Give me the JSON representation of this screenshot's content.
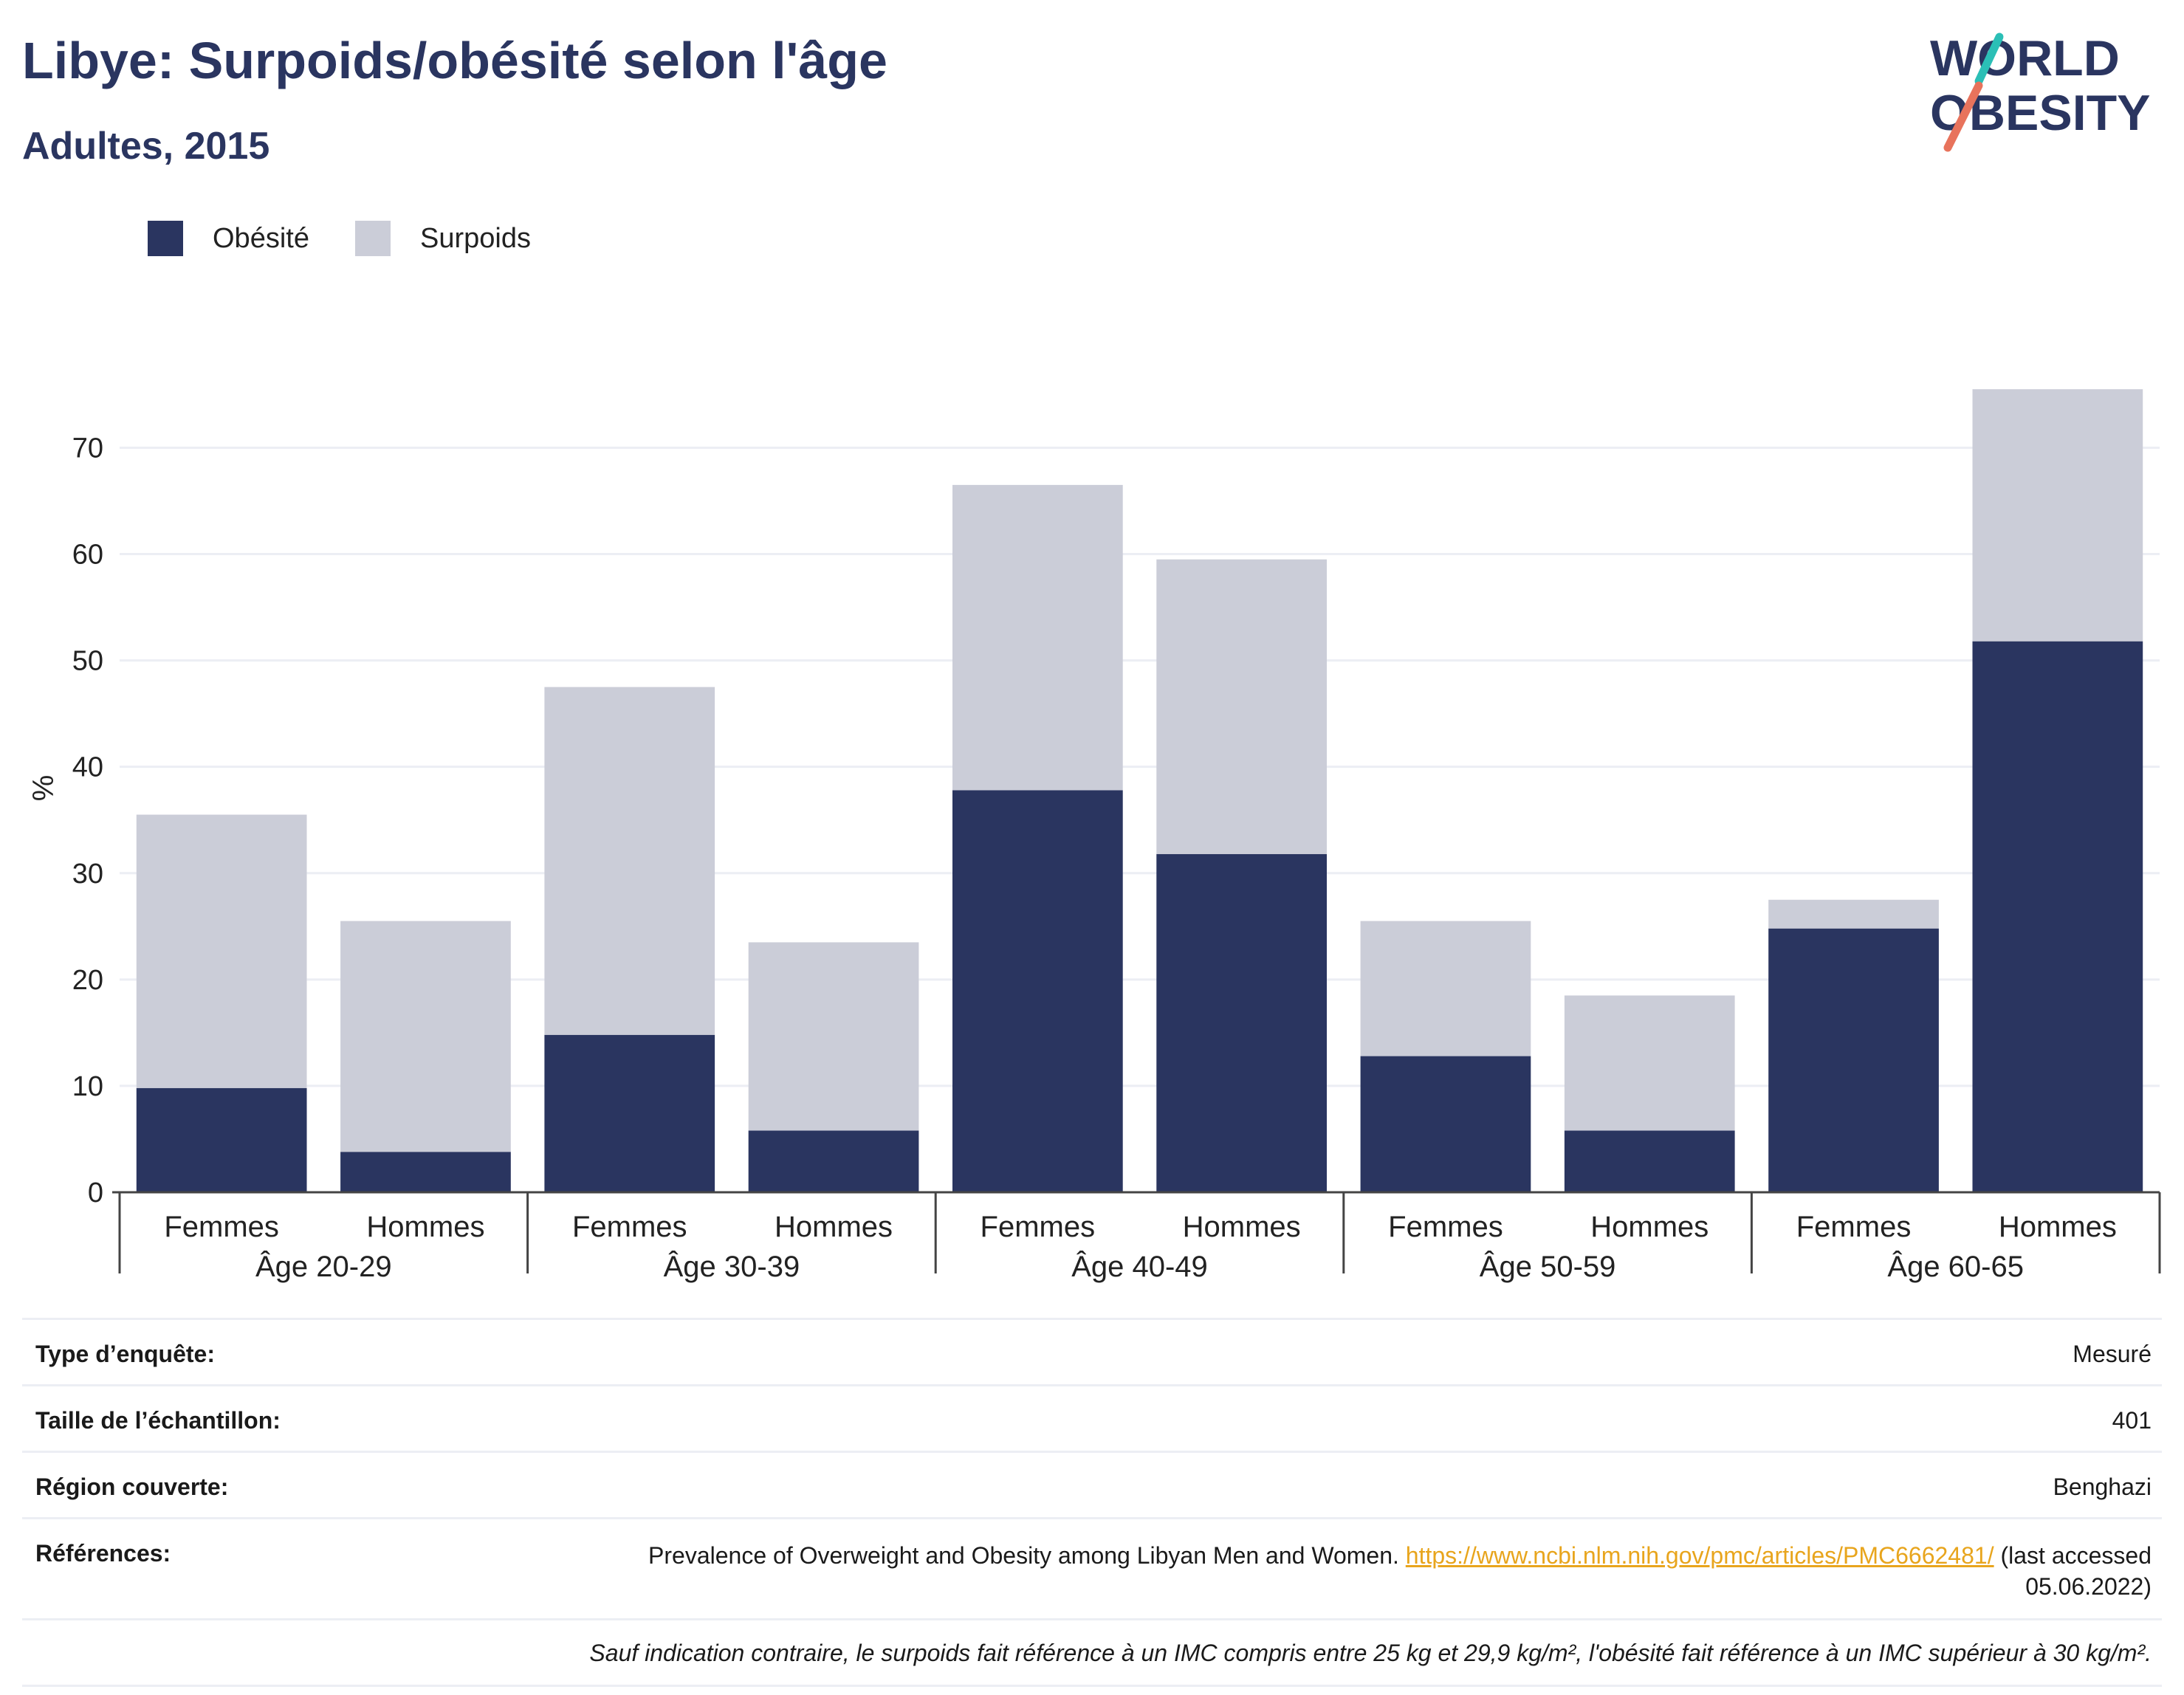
{
  "header": {
    "title": "Libye: Surpoids/obésité selon l'âge",
    "subtitle": "Adultes, 2015"
  },
  "logo": {
    "line1": "WORLD",
    "line2": "OBESITY",
    "colors": {
      "text": "#2a3560",
      "accent_teal": "#2bbfb6",
      "accent_coral": "#e8735c"
    }
  },
  "legend": [
    {
      "label": "Obésité",
      "color": "#2a3560"
    },
    {
      "label": "Surpoids",
      "color": "#cbcdd8"
    }
  ],
  "chart_data": {
    "type": "bar",
    "stacked": true,
    "ylabel": "%",
    "ylim": [
      0,
      76
    ],
    "yticks": [
      0,
      10,
      20,
      30,
      40,
      50,
      60,
      70
    ],
    "grid": true,
    "legend_position": "top-left",
    "groups": [
      "Âge 20-29",
      "Âge 30-39",
      "Âge 40-49",
      "Âge 50-59",
      "Âge 60-65"
    ],
    "categories": [
      "Femmes",
      "Hommes",
      "Femmes",
      "Hommes",
      "Femmes",
      "Hommes",
      "Femmes",
      "Hommes",
      "Femmes",
      "Hommes"
    ],
    "series": [
      {
        "name": "Obésité",
        "color": "#2a3560",
        "values": [
          9.8,
          3.8,
          14.8,
          5.8,
          37.8,
          31.8,
          12.8,
          5.8,
          24.8,
          51.8
        ]
      },
      {
        "name": "Surpoids",
        "color": "#cbcdd8",
        "values": [
          25.7,
          21.7,
          32.7,
          17.7,
          28.7,
          27.7,
          12.7,
          12.7,
          2.7,
          23.7
        ]
      }
    ]
  },
  "info": {
    "survey_type": {
      "label": "Type d’enquête:",
      "value": "Mesuré"
    },
    "sample_size": {
      "label": "Taille de l’échantillon:",
      "value": "401"
    },
    "region": {
      "label": "Région couverte:",
      "value": "Benghazi"
    },
    "references": {
      "label": "Références:",
      "text": "Prevalence of Overweight and Obesity among Libyan Men and Women.",
      "link": "https://www.ncbi.nlm.nih.gov/pmc/articles/PMC6662481/",
      "suffix": "(last accessed 05.06.2022)"
    },
    "note": "Sauf indication contraire, le surpoids fait référence à un IMC compris entre 25 kg et 29,9 kg/m², l'obésité fait référence à un IMC supérieur à 30 kg/m²."
  }
}
